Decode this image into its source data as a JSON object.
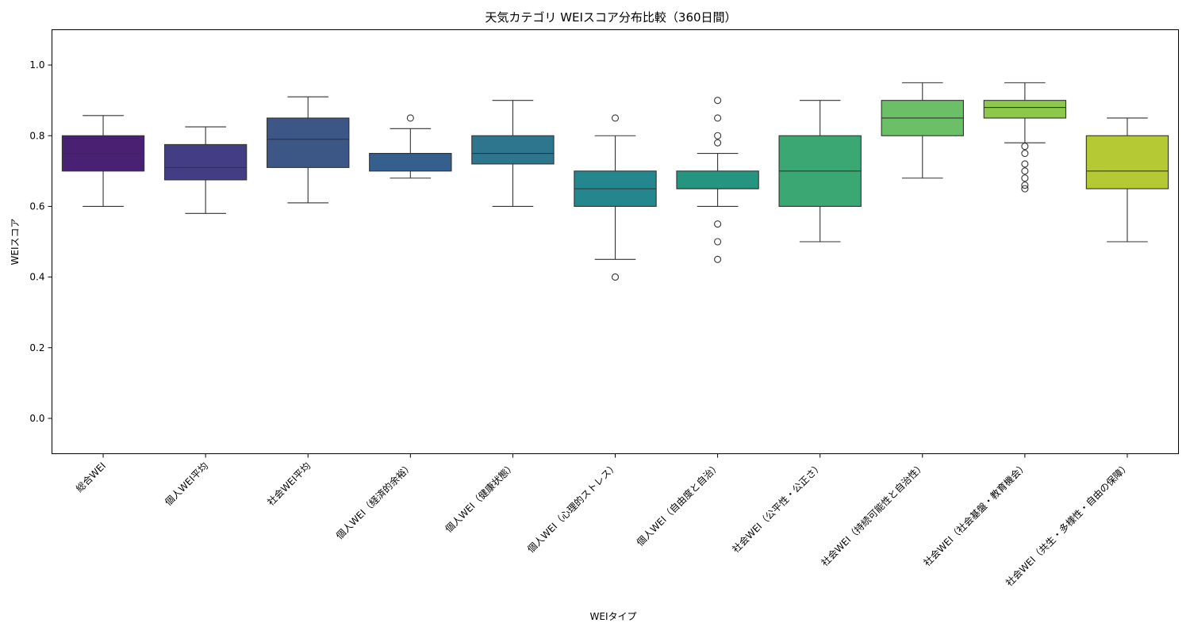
{
  "chart_data": {
    "type": "box",
    "title": "天気カテゴリ WEIスコア分布比較（360日間）",
    "xlabel": "WEIタイプ",
    "ylabel": "WEIスコア",
    "ylim": [
      -0.1,
      1.1
    ],
    "yticks": [
      0.0,
      0.2,
      0.4,
      0.6,
      0.8,
      1.0
    ],
    "ytick_labels": [
      "0.0",
      "0.2",
      "0.4",
      "0.6",
      "0.8",
      "1.0"
    ],
    "categories": [
      "総合WEI",
      "個人WEI平均",
      "社会WEI平均",
      "個人WEI（経済的余裕）",
      "個人WEI（健康状態）",
      "個人WEI（心理的ストレス）",
      "個人WEI（自由度と自治）",
      "社会WEI（公平性・公正さ）",
      "社会WEI（持続可能性と自治性）",
      "社会WEI（社会基盤・教育機会）",
      "社会WEI（共生・多様性・自由の保障）"
    ],
    "boxes": [
      {
        "q1": 0.7,
        "median": 0.75,
        "q3": 0.8,
        "whisker_low": 0.6,
        "whisker_high": 0.857,
        "fliers": [],
        "color": "#482172"
      },
      {
        "q1": 0.675,
        "median": 0.71,
        "q3": 0.775,
        "whisker_low": 0.58,
        "whisker_high": 0.825,
        "fliers": [],
        "color": "#433d84"
      },
      {
        "q1": 0.71,
        "median": 0.79,
        "q3": 0.85,
        "whisker_low": 0.61,
        "whisker_high": 0.91,
        "fliers": [],
        "color": "#3c5686"
      },
      {
        "q1": 0.7,
        "median": 0.75,
        "q3": 0.75,
        "whisker_low": 0.68,
        "whisker_high": 0.82,
        "fliers": [
          0.85
        ],
        "color": "#355f8d"
      },
      {
        "q1": 0.72,
        "median": 0.75,
        "q3": 0.8,
        "whisker_low": 0.6,
        "whisker_high": 0.9,
        "fliers": [],
        "color": "#2d768e"
      },
      {
        "q1": 0.6,
        "median": 0.65,
        "q3": 0.7,
        "whisker_low": 0.45,
        "whisker_high": 0.8,
        "fliers": [
          0.85,
          0.4
        ],
        "color": "#24878e"
      },
      {
        "q1": 0.65,
        "median": 0.65,
        "q3": 0.7,
        "whisker_low": 0.6,
        "whisker_high": 0.75,
        "fliers": [
          0.9,
          0.85,
          0.8,
          0.78,
          0.55,
          0.5,
          0.45
        ],
        "color": "#26957f"
      },
      {
        "q1": 0.6,
        "median": 0.7,
        "q3": 0.8,
        "whisker_low": 0.5,
        "whisker_high": 0.9,
        "fliers": [],
        "color": "#3ba772"
      },
      {
        "q1": 0.8,
        "median": 0.85,
        "q3": 0.9,
        "whisker_low": 0.68,
        "whisker_high": 0.95,
        "fliers": [],
        "color": "#6bbf66"
      },
      {
        "q1": 0.85,
        "median": 0.88,
        "q3": 0.9,
        "whisker_low": 0.78,
        "whisker_high": 0.95,
        "fliers": [
          0.77,
          0.75,
          0.72,
          0.7,
          0.68,
          0.66,
          0.65
        ],
        "color": "#8dc84a"
      },
      {
        "q1": 0.65,
        "median": 0.7,
        "q3": 0.8,
        "whisker_low": 0.5,
        "whisker_high": 0.85,
        "fliers": [],
        "color": "#b5c934"
      }
    ]
  }
}
